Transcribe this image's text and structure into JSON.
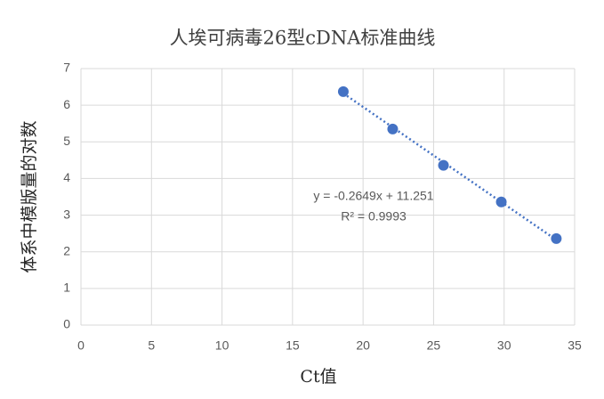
{
  "chart_data": {
    "type": "scatter",
    "title": "人埃可病毒26型cDNA标准曲线",
    "x_label": "Ct值",
    "y_label": "体系中模版量的对数",
    "series": [
      {
        "name": "体系中模版量的对数",
        "color": "#4472c4",
        "x": [
          18.6,
          22.1,
          25.7,
          29.8,
          33.7
        ],
        "values": [
          6.37,
          5.35,
          4.36,
          3.36,
          2.36
        ]
      }
    ],
    "trendline": {
      "slope": -0.2649,
      "intercept": 11.251,
      "r_squared": 0.9993,
      "equation": "y = -0.2649x + 11.251",
      "r_squared_label": "R² = 0.9993",
      "style": "dotted"
    },
    "xlim": [
      0,
      35
    ],
    "xticks": [
      0,
      5,
      10,
      15,
      20,
      25,
      30,
      35
    ],
    "ylim": [
      0,
      7
    ],
    "yticks": [
      0,
      1,
      2,
      3,
      4,
      5,
      6,
      7
    ],
    "grid": true
  }
}
